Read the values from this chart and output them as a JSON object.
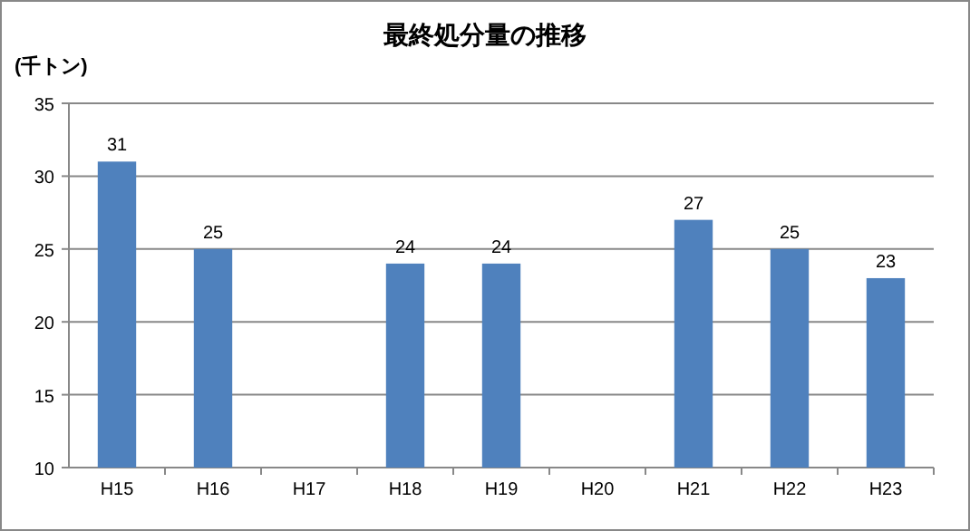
{
  "chart_data": {
    "type": "bar",
    "title": "最終処分量の推移",
    "ylabel": "(千トン)",
    "categories": [
      "H15",
      "H16",
      "H17",
      "H18",
      "H19",
      "H20",
      "H21",
      "H22",
      "H23"
    ],
    "values": [
      31,
      25,
      null,
      24,
      24,
      null,
      27,
      25,
      23
    ],
    "color": "#4f81bd",
    "ylim": [
      10,
      35
    ],
    "yticks": [
      10,
      15,
      20,
      25,
      30,
      35
    ],
    "grid": "y",
    "data_labels": true
  }
}
